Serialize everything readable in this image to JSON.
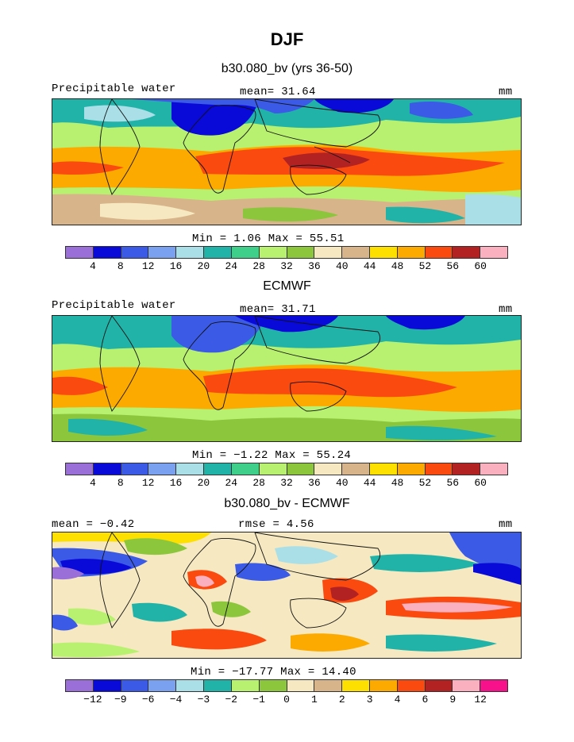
{
  "figure": {
    "title": "DJF"
  },
  "colors_abs": [
    "#9a6fd8",
    "#0a0ad8",
    "#3b5be6",
    "#7aa0f0",
    "#aadfe8",
    "#22b3a8",
    "#3fcf8a",
    "#b8f070",
    "#8cc63c",
    "#f6e8c0",
    "#d8b48a",
    "#fde000",
    "#fcaa00",
    "#fa4a10",
    "#b22222",
    "#fbb0c0",
    "#f7128c"
  ],
  "colors_diff": [
    "#9a6fd8",
    "#0a0ad8",
    "#3b5be6",
    "#7aa0f0",
    "#aadfe8",
    "#22b3a8",
    "#b8f070",
    "#8cc63c",
    "#f6e8c0",
    "#d8b48a",
    "#fde000",
    "#fcaa00",
    "#fa4a10",
    "#b22222",
    "#fbb0c0",
    "#f7128c"
  ],
  "panels": [
    {
      "title": "b30.080_bv (yrs 36-50)",
      "left_label": "Precipitable water",
      "center_label": "mean=  31.64",
      "right_label": "mm",
      "minmax": "Min =    1.06 Max =   55.51",
      "ticks": [
        "4",
        "8",
        "12",
        "16",
        "20",
        "24",
        "28",
        "32",
        "36",
        "40",
        "44",
        "48",
        "52",
        "56",
        "60"
      ]
    },
    {
      "title": "ECMWF",
      "left_label": "Precipitable water",
      "center_label": "mean=  31.71",
      "right_label": "mm",
      "minmax": "Min =  −1.22 Max =   55.24",
      "ticks": [
        "4",
        "8",
        "12",
        "16",
        "20",
        "24",
        "28",
        "32",
        "36",
        "40",
        "44",
        "48",
        "52",
        "56",
        "60"
      ]
    },
    {
      "title": "b30.080_bv - ECMWF",
      "left_label": "mean =  −0.42",
      "center_label": "rmse =   4.56",
      "right_label": "mm",
      "minmax": "Min = −17.77 Max =  14.40",
      "ticks": [
        "−12",
        "−9",
        "−6",
        "−4",
        "−3",
        "−2",
        "−1",
        "0",
        "1",
        "2",
        "3",
        "4",
        "6",
        "9",
        "12"
      ]
    }
  ]
}
